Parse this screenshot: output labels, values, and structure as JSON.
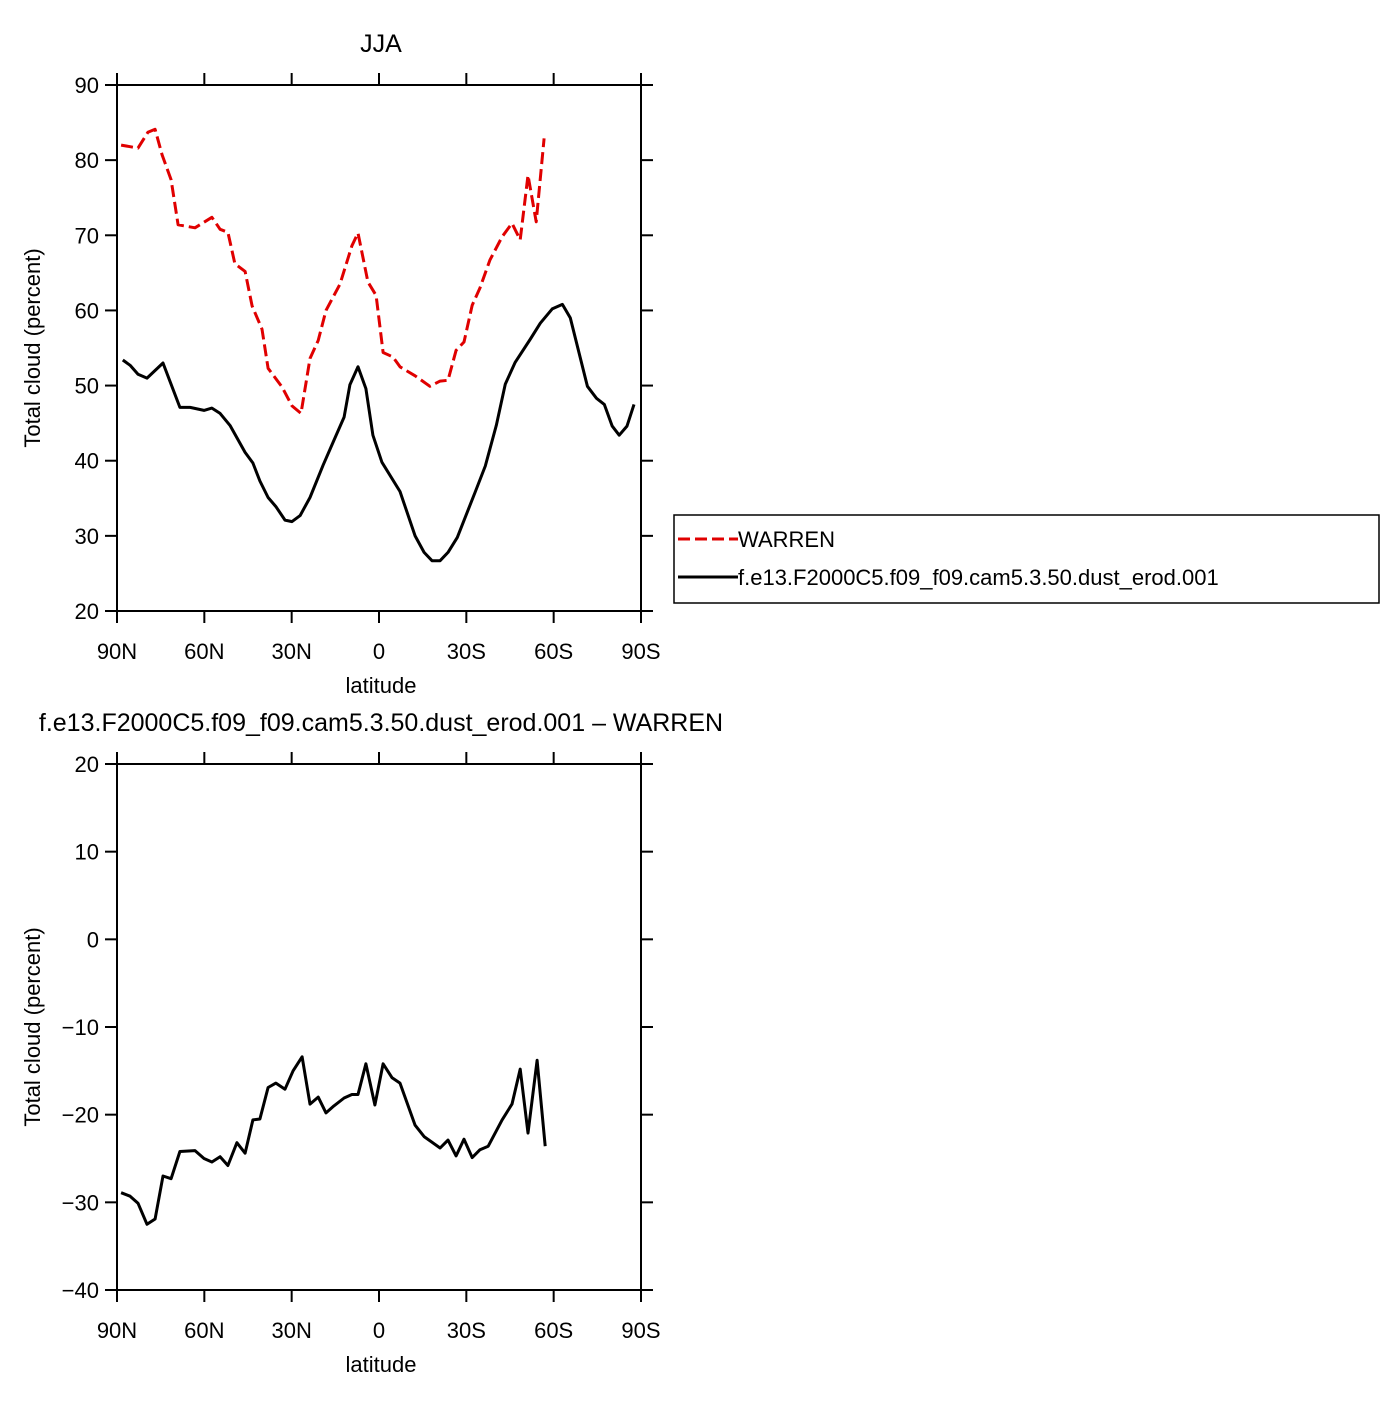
{
  "chart_data": [
    {
      "type": "line",
      "title": "JJA",
      "xlabel": "latitude",
      "ylabel": "Total cloud (percent)",
      "xlim": [
        90,
        -90
      ],
      "xticks": [
        {
          "value": 90,
          "label": "90N"
        },
        {
          "value": 60,
          "label": "60N"
        },
        {
          "value": 30,
          "label": "30N"
        },
        0,
        {
          "value": -30,
          "label": "30S"
        },
        {
          "value": -60,
          "label": "60S"
        },
        {
          "value": -90,
          "label": "90S"
        }
      ],
      "ylim": [
        20,
        90
      ],
      "yticks": [
        20,
        30,
        40,
        50,
        60,
        70,
        80,
        90
      ],
      "legend": "right",
      "series": [
        {
          "name": "WARREN",
          "color": "#e00000",
          "line_style": "dashed",
          "x": [
            88.6,
            82.8,
            79.4,
            76.9,
            74.5,
            71.4,
            69.0,
            63.2,
            57.4,
            54.6,
            51.9,
            49.5,
            46.0,
            43.6,
            40.2,
            38.1,
            33.3,
            29.9,
            26.8,
            23.7,
            20.9,
            18.2,
            13.4,
            9.3,
            7.2,
            3.8,
            1.0,
            -1.4,
            -4.8,
            -7.2,
            -12.4,
            -17.5,
            -21.0,
            -23.7,
            -26.5,
            -29.2,
            -32.0,
            -34.7,
            -38.1,
            -42.3,
            -45.7,
            -48.5,
            -51.2,
            -54.0,
            -56.7
          ],
          "values": [
            82.0,
            81.6,
            83.7,
            84.1,
            80.7,
            77.4,
            71.4,
            71.0,
            72.4,
            70.8,
            70.4,
            66.2,
            65.2,
            60.6,
            57.5,
            52.3,
            49.8,
            47.3,
            46.3,
            53.6,
            56.0,
            60.0,
            63.5,
            68.6,
            70.3,
            63.8,
            62.0,
            54.4,
            53.8,
            52.5,
            51.3,
            49.9,
            50.6,
            50.7,
            54.7,
            55.8,
            60.7,
            63.0,
            66.7,
            69.8,
            71.6,
            69.4,
            78.0,
            71.8,
            82.9
          ]
        },
        {
          "name": "f.e13.F2000C5.f09_f09.cam5.3.50.dust_erod.001",
          "color": "#000000",
          "line_style": "solid",
          "x": [
            88.0,
            85.5,
            82.8,
            79.7,
            74.2,
            68.4,
            64.9,
            60.1,
            57.4,
            54.6,
            51.2,
            46.0,
            43.3,
            40.9,
            38.1,
            35.4,
            32.3,
            29.9,
            27.1,
            23.7,
            19.2,
            15.5,
            12.0,
            10.0,
            7.2,
            4.5,
            2.1,
            -1.0,
            -7.2,
            -12.4,
            -15.5,
            -18.2,
            -21.0,
            -23.7,
            -26.9,
            -33.1,
            -36.5,
            -40.3,
            -43.4,
            -46.8,
            -52.0,
            -55.4,
            -59.5,
            -63.0,
            -65.7,
            -71.6,
            -74.7,
            -77.4,
            -80.1,
            -82.5,
            -85.2,
            -87.6
          ],
          "values": [
            53.4,
            52.7,
            51.5,
            51.0,
            53.0,
            47.1,
            47.1,
            46.7,
            47.0,
            46.3,
            44.7,
            41.1,
            39.7,
            37.3,
            35.1,
            33.9,
            32.1,
            31.9,
            32.7,
            35.1,
            39.4,
            42.7,
            45.8,
            50.1,
            52.5,
            49.6,
            43.4,
            39.8,
            35.9,
            30.0,
            27.8,
            26.7,
            26.7,
            27.8,
            29.8,
            35.9,
            39.3,
            44.7,
            50.2,
            53.1,
            56.2,
            58.3,
            60.2,
            60.8,
            59.0,
            49.9,
            48.3,
            47.5,
            44.6,
            43.4,
            44.6,
            47.5
          ]
        }
      ]
    },
    {
      "type": "line",
      "title": "f.e13.F2000C5.f09_f09.cam5.3.50.dust_erod.001 – WARREN",
      "xlabel": "latitude",
      "ylabel": "Total cloud (percent)",
      "xlim": [
        90,
        -90
      ],
      "xticks": [
        {
          "value": 90,
          "label": "90N"
        },
        {
          "value": 60,
          "label": "60N"
        },
        {
          "value": 30,
          "label": "30N"
        },
        0,
        {
          "value": -30,
          "label": "30S"
        },
        {
          "value": -60,
          "label": "60S"
        },
        {
          "value": -90,
          "label": "90S"
        }
      ],
      "ylim": [
        -40,
        20
      ],
      "yticks": [
        {
          "value": -40,
          "label": "−40"
        },
        {
          "value": -30,
          "label": "−30"
        },
        {
          "value": -20,
          "label": "−20"
        },
        {
          "value": -10,
          "label": "−10"
        },
        0,
        10,
        20
      ],
      "series": [
        {
          "color": "#000000",
          "line_style": "solid",
          "x": [
            88.6,
            85.5,
            82.8,
            79.7,
            76.9,
            74.2,
            71.4,
            68.4,
            63.2,
            60.1,
            57.4,
            54.6,
            51.9,
            48.8,
            46.0,
            43.3,
            40.9,
            38.1,
            35.4,
            32.3,
            29.5,
            26.4,
            23.7,
            20.9,
            18.2,
            15.5,
            12.0,
            9.3,
            7.2,
            4.5,
            1.4,
            -1.4,
            -4.5,
            -7.2,
            -12.4,
            -15.5,
            -21.0,
            -23.7,
            -26.5,
            -29.2,
            -32.0,
            -34.7,
            -37.5,
            -42.3,
            -45.7,
            -48.5,
            -51.2,
            -54.3,
            -57.1
          ],
          "values": [
            -28.9,
            -29.3,
            -30.1,
            -32.5,
            -31.9,
            -27.0,
            -27.3,
            -24.2,
            -24.1,
            -25.0,
            -25.4,
            -24.8,
            -25.8,
            -23.2,
            -24.4,
            -20.6,
            -20.5,
            -16.9,
            -16.4,
            -17.1,
            -15.0,
            -13.4,
            -18.8,
            -18.0,
            -19.8,
            -19.0,
            -18.1,
            -17.7,
            -17.7,
            -14.2,
            -18.9,
            -14.2,
            -15.8,
            -16.4,
            -21.2,
            -22.5,
            -23.8,
            -22.9,
            -24.7,
            -22.8,
            -24.9,
            -24.0,
            -23.6,
            -20.6,
            -18.8,
            -14.8,
            -22.1,
            -13.8,
            -23.6
          ]
        }
      ]
    }
  ]
}
